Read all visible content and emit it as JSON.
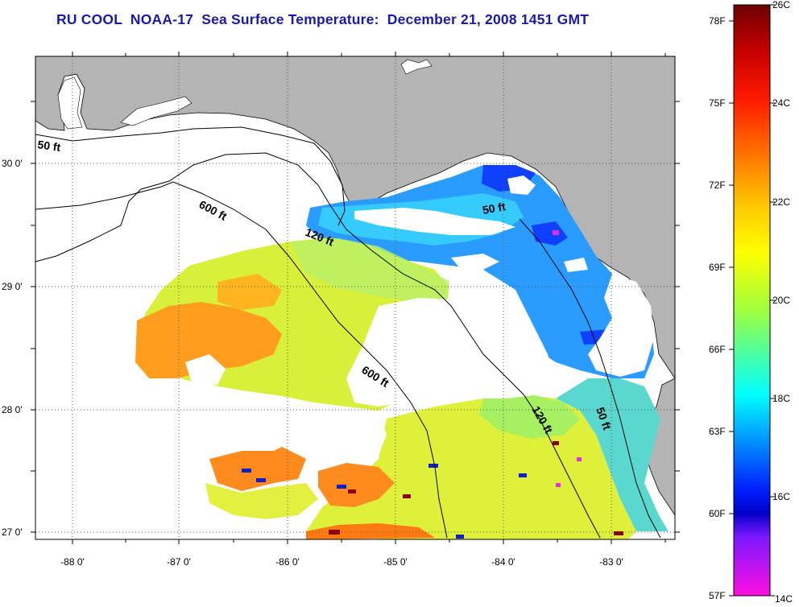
{
  "title": "RU COOL  NOAA-17  Sea Surface Temperature:  December 21, 2008 1451 GMT",
  "map": {
    "lon_ticks": [
      "-88 0'",
      "-87 0'",
      "-86 0'",
      "-85 0'",
      "-84 0'",
      "-83 0'"
    ],
    "lat_ticks": [
      "30 0'",
      "29 0'",
      "28 0'",
      "27 0'"
    ],
    "contour_labels": [
      {
        "id": "c50-west",
        "text": "50 ft"
      },
      {
        "id": "c600-north",
        "text": "600 ft"
      },
      {
        "id": "c120-north",
        "text": "120 ft"
      },
      {
        "id": "c50-bigbend",
        "text": "50 ft"
      },
      {
        "id": "c600-south",
        "text": "600 ft"
      },
      {
        "id": "c120-south",
        "text": "120 ft"
      },
      {
        "id": "c50-south",
        "text": "50 ft"
      }
    ],
    "colors": {
      "land": "#b4b4b4",
      "no_data": "#ffffff",
      "grid": "#555555"
    }
  },
  "colorbar": {
    "fahrenheit_labels": [
      "78F",
      "75F",
      "72F",
      "69F",
      "66F",
      "63F",
      "60F",
      "57F"
    ],
    "celsius_labels": [
      "26C",
      "24C",
      "22C",
      "20C",
      "18C",
      "16C",
      "14C"
    ],
    "colors_top_to_bottom": [
      "#7a0000",
      "#ff0000",
      "#ff7f00",
      "#ffff00",
      "#00ffff",
      "#0000ff",
      "#ff00ff"
    ]
  }
}
